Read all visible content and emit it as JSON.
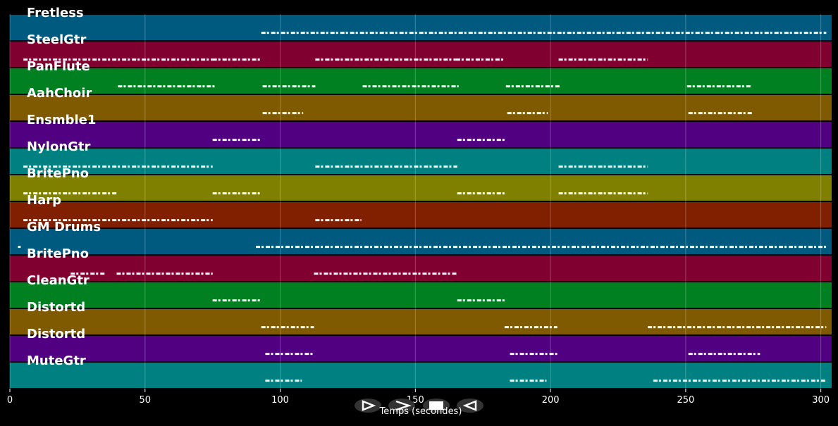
{
  "chart_data": {
    "type": "pianoroll",
    "x_label": "Temps (secondes)",
    "xlim": [
      0,
      304
    ],
    "xticks": [
      0,
      50,
      100,
      150,
      200,
      250,
      300
    ],
    "grid": true,
    "tracks": [
      {
        "name": "Fretless",
        "color": "#005a80",
        "segments": [
          [
            93,
            302
          ]
        ]
      },
      {
        "name": "SteelGtr",
        "color": "#800030",
        "segments": [
          [
            5,
            75
          ],
          [
            75,
            93
          ],
          [
            113,
            165
          ],
          [
            165,
            183
          ],
          [
            203,
            236
          ]
        ]
      },
      {
        "name": "PanFlute",
        "color": "#008020",
        "segments": [
          [
            40,
            76.5
          ],
          [
            93.5,
            113
          ],
          [
            130.5,
            166
          ],
          [
            183.5,
            203.5
          ],
          [
            250.5,
            274.5
          ]
        ]
      },
      {
        "name": "AahChoir",
        "color": "#805a00",
        "segments": [
          [
            93.5,
            108.5
          ],
          [
            184,
            199
          ],
          [
            251,
            274.5
          ]
        ]
      },
      {
        "name": "Ensmble1",
        "color": "#500080",
        "segments": [
          [
            75,
            93
          ],
          [
            165.5,
            183
          ]
        ]
      },
      {
        "name": "NylonGtr",
        "color": "#008080",
        "segments": [
          [
            5,
            75
          ],
          [
            113,
            165.5
          ],
          [
            203,
            236
          ]
        ]
      },
      {
        "name": "BritePno",
        "color": "#808000",
        "segments": [
          [
            5,
            39.5
          ],
          [
            75,
            93
          ],
          [
            165.5,
            183
          ],
          [
            203,
            236
          ]
        ]
      },
      {
        "name": "Harp",
        "color": "#802000",
        "segments": [
          [
            5,
            75
          ],
          [
            113,
            130
          ]
        ]
      },
      {
        "name": "GM Drums",
        "color": "#005a80",
        "segments": [
          [
            3,
            4
          ],
          [
            91,
            302
          ]
        ]
      },
      {
        "name": "BritePno",
        "color": "#800030",
        "segments": [
          [
            22.5,
            35.5
          ],
          [
            39.5,
            75
          ],
          [
            112.5,
            165.5
          ]
        ]
      },
      {
        "name": "CleanGtr",
        "color": "#008020",
        "segments": [
          [
            75,
            93
          ],
          [
            165.5,
            183
          ]
        ]
      },
      {
        "name": "Distortd",
        "color": "#805a00",
        "segments": [
          [
            93,
            112.5
          ],
          [
            183,
            202.5
          ],
          [
            236,
            302
          ]
        ]
      },
      {
        "name": "Distortd",
        "color": "#500080",
        "segments": [
          [
            94.5,
            112.5
          ],
          [
            185,
            202.5
          ],
          [
            251,
            277.5
          ]
        ]
      },
      {
        "name": "MuteGtr",
        "color": "#008080",
        "segments": [
          [
            94.5,
            108
          ],
          [
            185,
            198.5
          ],
          [
            238,
            302
          ]
        ]
      }
    ]
  }
}
